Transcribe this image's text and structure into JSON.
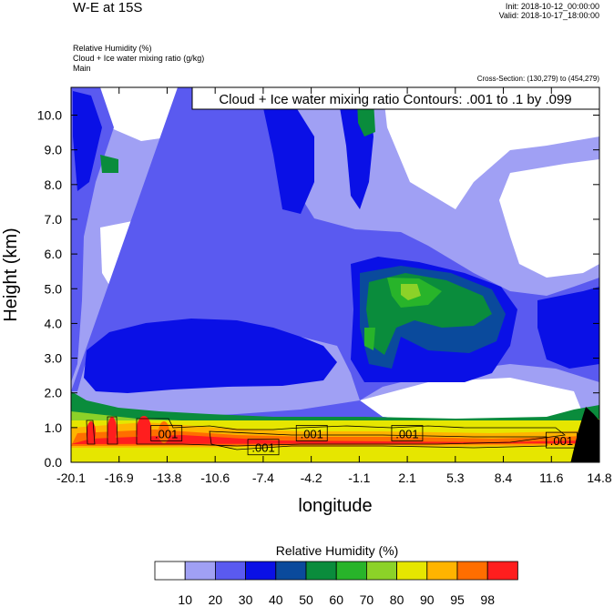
{
  "header": {
    "title": "W-E at 15S",
    "init": "Init: 2018-10-12_00:00:00",
    "valid": "Valid: 2018-10-17_18:00:00",
    "fields": [
      "Relative Humidity   (%)",
      "Cloud + Ice water mixing ratio   (g/kg)",
      "Main"
    ],
    "cross_section": "Cross-Section: (130,279) to (454,279)"
  },
  "chart_data": {
    "type": "contour",
    "title": "W-E at 15S",
    "xlabel": "longitude",
    "ylabel": "Height (km)",
    "xlim": [
      -20.1,
      14.8
    ],
    "ylim": [
      0.0,
      10.8
    ],
    "x_ticks": [
      "-20.1",
      "-16.9",
      "-13.8",
      "-10.6",
      "-7.4",
      "-4.2",
      "-1.1",
      "2.1",
      "5.3",
      "8.4",
      "11.6",
      "14.8"
    ],
    "y_ticks": [
      "0.0",
      "1.0",
      "2.0",
      "3.0",
      "4.0",
      "5.0",
      "6.0",
      "7.0",
      "8.0",
      "9.0",
      "10.0"
    ],
    "y_tick_values": [
      0,
      1,
      2,
      3,
      4,
      5,
      6,
      7,
      8,
      9,
      10
    ],
    "contour_info": "Cloud + Ice water mixing ratio Contours: .001 to .1 by .099",
    "contour_labels": [
      {
        "text": ".001",
        "x": -13.8,
        "y": 0.8
      },
      {
        "text": ".001",
        "x": -7.4,
        "y": 0.4
      },
      {
        "text": ".001",
        "x": -4.2,
        "y": 0.8
      },
      {
        "text": ".001",
        "x": 2.1,
        "y": 0.8
      },
      {
        "text": ".001",
        "x": 12.3,
        "y": 0.6
      }
    ],
    "colorbar": {
      "title": "Relative Humidity  (%)",
      "levels": [
        "10",
        "20",
        "30",
        "40",
        "50",
        "60",
        "70",
        "80",
        "90",
        "95",
        "98"
      ],
      "colors": [
        "#ffffff",
        "#a0a0f4",
        "#5a5af0",
        "#0a10e6",
        "#0a4a9c",
        "#0a8c3c",
        "#28b42a",
        "#8cd228",
        "#e6e600",
        "#ffb400",
        "#ff6e00",
        "#ff1e1e"
      ]
    },
    "terrain": {
      "color": "#000000",
      "x": [
        12.9,
        13.4,
        13.9,
        14.4,
        14.8
      ],
      "y": [
        0.0,
        0.9,
        1.6,
        1.4,
        1.2
      ]
    }
  }
}
